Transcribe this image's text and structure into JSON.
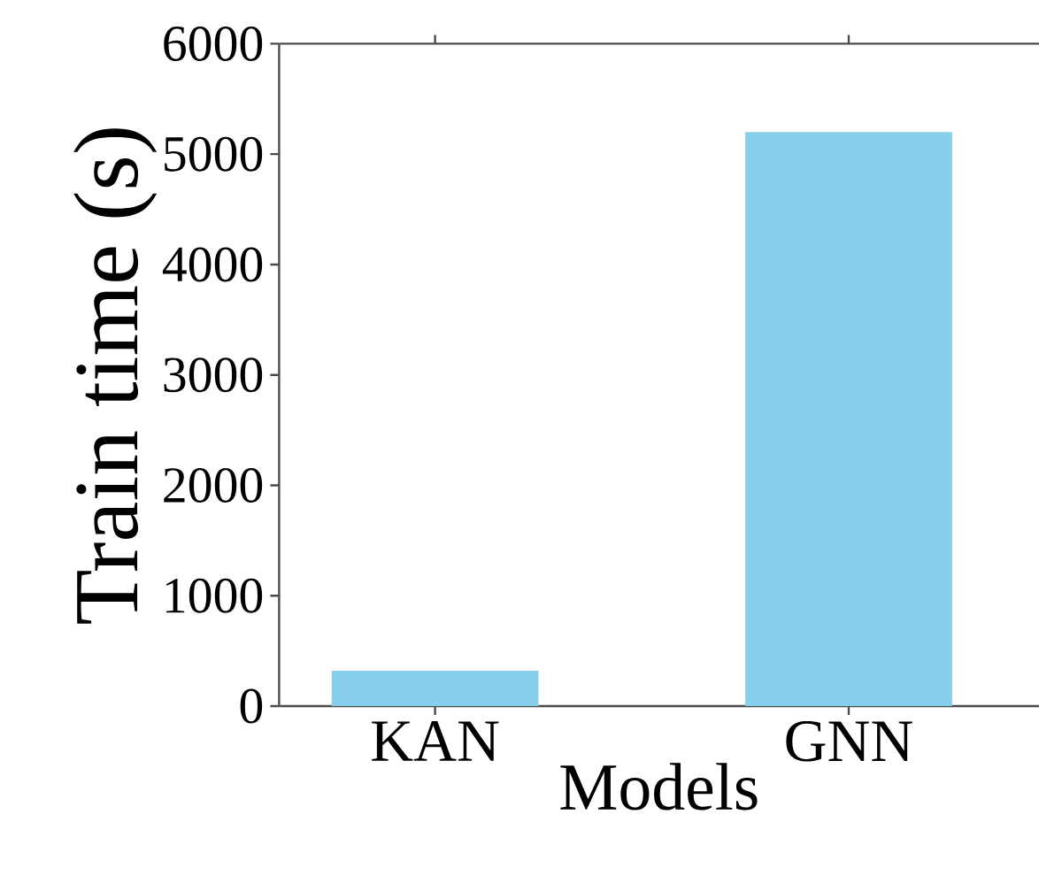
{
  "chart_data": {
    "type": "bar",
    "xlabel": "Models",
    "ylabel": "Train time (s)",
    "categories": [
      "KAN",
      "GNN"
    ],
    "values": [
      320,
      5200
    ],
    "color": "#87ceeb",
    "ylim": [
      0,
      6000
    ],
    "yticks": [
      0,
      1000,
      2000,
      3000,
      4000,
      5000,
      6000
    ],
    "grid": false
  }
}
